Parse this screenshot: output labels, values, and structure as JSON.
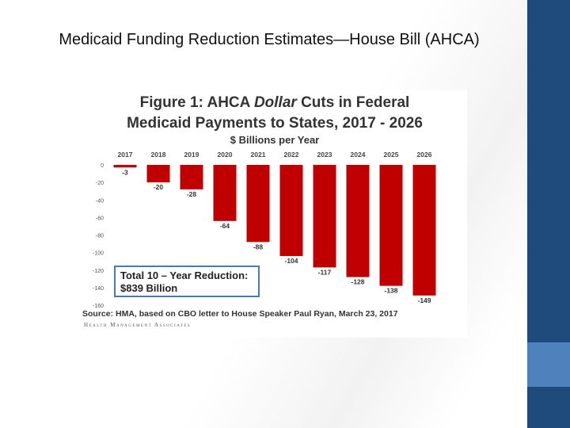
{
  "slide": {
    "title": "Medicaid Funding Reduction Estimates—House Bill (AHCA)"
  },
  "figure": {
    "title_prefix": "Figure 1: AHCA ",
    "title_emph": "Dollar",
    "title_suffix": " Cuts in Federal",
    "title_line2": "Medicaid Payments to States, 2017 - 2026",
    "subtitle": "$ Billions per Year",
    "total_line1": "Total 10 – Year Reduction:",
    "total_line2": "$839 Billion",
    "source": "Source: HMA, based on CBO letter to House Speaker Paul Ryan, March 23, 2017",
    "credit": "Health Management Associates"
  },
  "colors": {
    "bar": "#c00000",
    "side_band": "#1f4a7c",
    "side_accent": "#4f81bd",
    "box_border": "#4a78b0"
  },
  "chart_data": {
    "type": "bar",
    "categories": [
      "2017",
      "2018",
      "2019",
      "2020",
      "2021",
      "2022",
      "2023",
      "2024",
      "2025",
      "2026"
    ],
    "values": [
      -3,
      -20,
      -28,
      -64,
      -88,
      -104,
      -117,
      -128,
      -138,
      -149
    ],
    "data_labels": [
      "-3",
      "-20",
      "-28",
      "-64",
      "-88",
      "-104",
      "-117",
      "-128",
      "-138",
      "-149"
    ],
    "y_ticks": [
      "0",
      "-20",
      "-40",
      "-60",
      "-80",
      "-100",
      "-120",
      "-140",
      "-160"
    ],
    "ylim": [
      -160,
      0
    ],
    "xaxis_position": "top",
    "grid": false,
    "title": "Figure 1: AHCA Dollar Cuts in Federal Medicaid Payments to States, 2017 - 2026",
    "ylabel": "$ Billions per Year"
  }
}
